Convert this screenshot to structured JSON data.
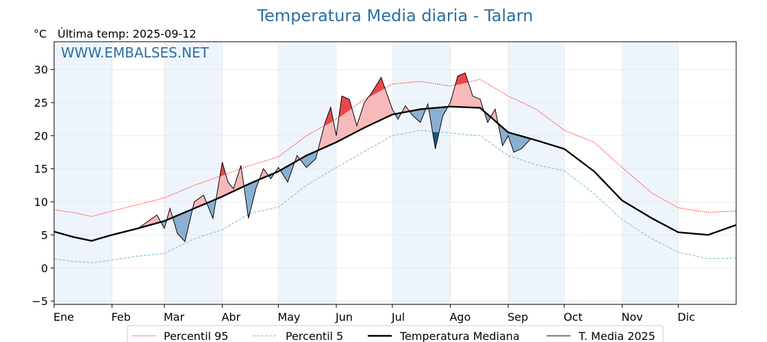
{
  "chart_data": {
    "type": "line",
    "title": "Temperatura Media diaria - Talarn",
    "unit_label": "°C",
    "last_temp": "Última temp: 2025-09-12",
    "watermark": "WWW.EMBALSES.NET",
    "ylim": [
      -5.5,
      34.2
    ],
    "yticks": [
      -5,
      0,
      5,
      10,
      15,
      20,
      25,
      30
    ],
    "ytick_labels": [
      "−5",
      "0",
      "5",
      "10",
      "15",
      "20",
      "25",
      "30"
    ],
    "xlim": [
      0,
      365
    ],
    "months": [
      "Ene",
      "Feb",
      "Mar",
      "Abr",
      "May",
      "Jun",
      "Jul",
      "Ago",
      "Sep",
      "Oct",
      "Nov",
      "Dic"
    ],
    "month_start_day": [
      0,
      31,
      59,
      90,
      120,
      151,
      181,
      212,
      243,
      273,
      304,
      334
    ],
    "grid": true,
    "legend_position": "bottom-center",
    "colors": {
      "title": "#2c6e9f",
      "p95": "#ff0000",
      "p5": "#8ec5dd",
      "median": "#000000",
      "year": "#000000",
      "above_fill": "#f7b9b9",
      "above_strong": "#e8484b",
      "below_fill": "#8bb0cf",
      "below_strong": "#1a5a8a",
      "band": "#eef4fb"
    },
    "series": [
      {
        "name": "Percentil 95",
        "style": "dotted",
        "x": [
          0,
          10,
          20,
          31,
          45,
          59,
          75,
          90,
          105,
          120,
          135,
          151,
          166,
          181,
          196,
          212,
          228,
          243,
          258,
          273,
          289,
          304,
          320,
          334,
          350,
          365
        ],
        "y": [
          8.8,
          8.4,
          7.8,
          8.6,
          9.6,
          10.6,
          12.5,
          14.0,
          15.5,
          16.8,
          20.0,
          22.5,
          25.5,
          27.8,
          28.2,
          27.5,
          28.5,
          26.0,
          24.0,
          20.8,
          19.0,
          15.2,
          11.3,
          9.1,
          8.4,
          8.6
        ]
      },
      {
        "name": "Percentil 5",
        "style": "dashed",
        "x": [
          0,
          10,
          20,
          31,
          45,
          59,
          75,
          90,
          105,
          120,
          135,
          151,
          166,
          181,
          196,
          212,
          228,
          243,
          258,
          273,
          289,
          304,
          320,
          334,
          350,
          365
        ],
        "y": [
          1.4,
          1.0,
          0.8,
          1.2,
          1.8,
          2.2,
          4.4,
          5.8,
          8.3,
          9.2,
          12.5,
          15.2,
          17.6,
          20.0,
          20.8,
          20.4,
          20.0,
          17.0,
          15.6,
          14.7,
          11.2,
          7.3,
          4.4,
          2.4,
          1.4,
          1.5
        ]
      },
      {
        "name": "Temperatura Mediana",
        "style": "solid-thick",
        "x": [
          0,
          10,
          20,
          31,
          45,
          59,
          75,
          90,
          105,
          120,
          135,
          151,
          166,
          181,
          196,
          212,
          228,
          243,
          258,
          273,
          289,
          304,
          320,
          334,
          350,
          365
        ],
        "y": [
          5.5,
          4.7,
          4.1,
          5.0,
          6.0,
          7.1,
          9.0,
          10.8,
          12.8,
          14.6,
          17.0,
          19.0,
          21.2,
          23.2,
          24.0,
          24.4,
          24.2,
          20.5,
          19.3,
          18.0,
          14.6,
          10.2,
          7.5,
          5.4,
          5.0,
          6.5
        ]
      },
      {
        "name": "T. Media 2025",
        "style": "solid-thin",
        "x": [
          0,
          10,
          20,
          31,
          45,
          55,
          59,
          62,
          66,
          70,
          75,
          80,
          85,
          90,
          93,
          96,
          100,
          104,
          108,
          112,
          116,
          120,
          125,
          130,
          135,
          140,
          145,
          148,
          151,
          154,
          158,
          162,
          166,
          170,
          175,
          181,
          184,
          188,
          192,
          196,
          200,
          204,
          208,
          212,
          216,
          220,
          224,
          228,
          232,
          236,
          240,
          243,
          246,
          250,
          255
        ],
        "y": [
          5.5,
          4.7,
          4.1,
          5.0,
          6.0,
          8.0,
          6.0,
          9.0,
          5.2,
          4.0,
          10.0,
          11.0,
          7.5,
          16.0,
          13.0,
          12.0,
          15.5,
          7.5,
          12.0,
          15.0,
          13.5,
          15.2,
          13.0,
          17.0,
          15.2,
          16.5,
          22.0,
          24.3,
          20.0,
          26.0,
          25.5,
          21.5,
          25.0,
          26.5,
          28.8,
          24.0,
          22.5,
          24.5,
          23.0,
          22.0,
          24.8,
          18.0,
          23.0,
          25.0,
          29.0,
          29.5,
          26.0,
          25.5,
          22.0,
          24.0,
          18.5,
          20.0,
          17.5,
          18.0,
          19.5
        ]
      }
    ]
  }
}
